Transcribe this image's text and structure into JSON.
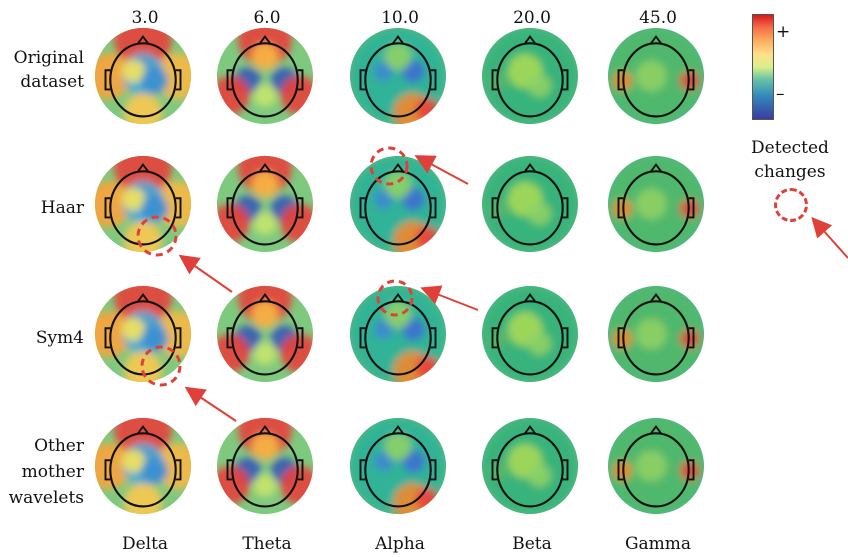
{
  "columns": [
    "3.0",
    "6.0",
    "10.0",
    "20.0",
    "45.0"
  ],
  "bands": [
    "Delta",
    "Theta",
    "Alpha",
    "Beta",
    "Gamma"
  ],
  "rows": [
    {
      "label_lines": [
        "Original",
        "dataset"
      ]
    },
    {
      "label_lines": [
        "Haar"
      ]
    },
    {
      "label_lines": [
        "Sym4"
      ]
    },
    {
      "label_lines": [
        "Other",
        "mother",
        "wavelets"
      ]
    }
  ],
  "colorbar": {
    "plus": "+",
    "minus": "–"
  },
  "legend": {
    "line1": "Detected",
    "line2": "changes"
  },
  "colors": {
    "accent": "#e0403a",
    "head_outline": "#111111"
  }
}
